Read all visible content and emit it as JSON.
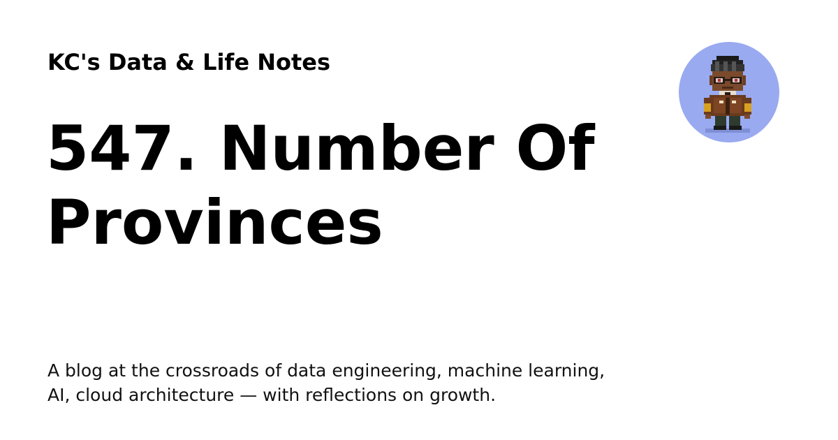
{
  "site": {
    "title": "KC's Data & Life Notes"
  },
  "post": {
    "title_line1": "547. Number Of",
    "title_line2": "Provinces"
  },
  "tagline": {
    "line1": "A blog at the crossroads of data engineering, machine learning,",
    "line2": "AI, cloud architecture — with reflections on growth."
  },
  "avatar": {
    "icon": "pixel-art-character-icon",
    "background": "#99aaf0"
  }
}
